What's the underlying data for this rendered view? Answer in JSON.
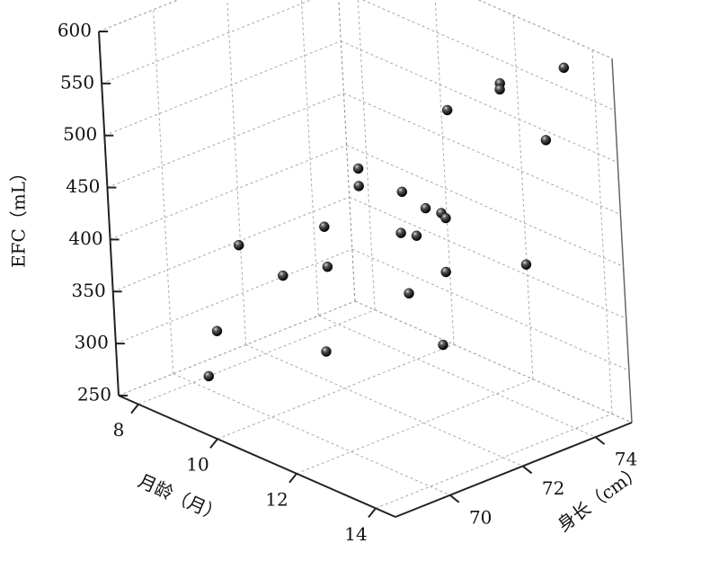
{
  "chart_data": {
    "type": "scatter3d",
    "xlabel": "月龄（月）",
    "ylabel": "身长（cm）",
    "zlabel": "EFC（mL）",
    "x": [
      14.2,
      13.1,
      12.8,
      11.7,
      14.5,
      9.6,
      9.3,
      10.7,
      11.0,
      11.4,
      11.7,
      11.0,
      11.4,
      9.6,
      8.9,
      10.3,
      10.0,
      12.4,
      14.2,
      11.7,
      8.6,
      11.4,
      12.8,
      8.9
    ],
    "y": [
      74.0,
      73.4,
      73.7,
      73.4,
      73.1,
      73.1,
      73.4,
      73.1,
      73.4,
      73.4,
      73.2,
      72.7,
      72.7,
      72.1,
      70.5,
      71.4,
      70.5,
      72.4,
      72.7,
      72.1,
      70.1,
      70.1,
      71.8,
      69.5
    ],
    "z": [
      600,
      575,
      560,
      526,
      548,
      439,
      413,
      435,
      420,
      422,
      425,
      406,
      410,
      397,
      390,
      380,
      379,
      396,
      429,
      368,
      308,
      335,
      341,
      278
    ],
    "xlim": [
      7.5,
      14.5
    ],
    "ylim": [
      68.5,
      75
    ],
    "zlim": [
      250,
      600
    ],
    "xticks": [
      8,
      10,
      12,
      14
    ],
    "yticks": [
      70,
      72,
      74
    ],
    "zticks": [
      250,
      300,
      350,
      400,
      450,
      500,
      550,
      600
    ],
    "color": "#111111",
    "grid": true
  }
}
